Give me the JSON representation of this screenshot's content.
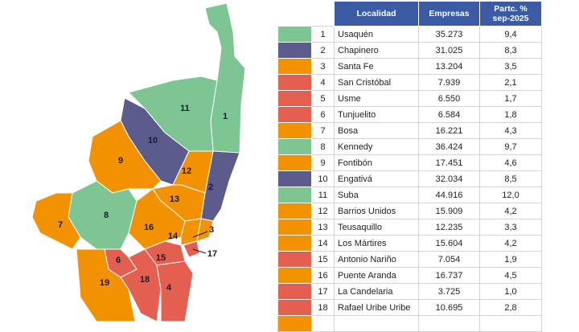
{
  "map": {
    "labels": [
      "1",
      "2",
      "3",
      "4",
      "6",
      "7",
      "8",
      "9",
      "10",
      "11",
      "12",
      "13",
      "14",
      "15",
      "16",
      "17",
      "18",
      "19"
    ]
  },
  "table": {
    "header": [
      "Localidad",
      "Empresas",
      "Partc. %\nsep-2025"
    ],
    "row_colors": [
      "#7dc592",
      "#5b5b8c",
      "#f39200",
      "#e35f4f",
      "#e35f4f",
      "#e35f4f",
      "#f39200",
      "#7dc592",
      "#f39200",
      "#5b5b8c",
      "#7dc592",
      "#f39200",
      "#f39200",
      "#f39200",
      "#e35f4f",
      "#f39200",
      "#e35f4f",
      "#e35f4f"
    ],
    "rows": [
      [
        "1",
        "Usaquén",
        "35.273",
        "9,4"
      ],
      [
        "2",
        "Chapinero",
        "31.025",
        "8,3"
      ],
      [
        "3",
        "Santa Fe",
        "13.204",
        "3,5"
      ],
      [
        "4",
        "San Cristóbal",
        "7.939",
        "2,1"
      ],
      [
        "5",
        "Usme",
        "6.550",
        "1,7"
      ],
      [
        "6",
        "Tunjuelito",
        "6.584",
        "1,8"
      ],
      [
        "7",
        "Bosa",
        "16.221",
        "4,3"
      ],
      [
        "8",
        "Kennedy",
        "36.424",
        "9,7"
      ],
      [
        "9",
        "Fontibón",
        "17.451",
        "4,6"
      ],
      [
        "10",
        "Engativá",
        "32.034",
        "8,5"
      ],
      [
        "11",
        "Suba",
        "44.916",
        "12,0"
      ],
      [
        "12",
        "Barrios Unidos",
        "15.909",
        "4,2"
      ],
      [
        "13",
        "Teusaquillo",
        "12.235",
        "3,3"
      ],
      [
        "14",
        "Los Mártires",
        "15.604",
        "4,2"
      ],
      [
        "15",
        "Antonio Nariño",
        "7.054",
        "1,9"
      ],
      [
        "16",
        "Puente Aranda",
        "16.737",
        "4,5"
      ],
      [
        "17",
        "La Candelaria",
        "3.725",
        "1,0"
      ],
      [
        "18",
        "Rafael Uribe Uribe",
        "10.695",
        "2,8"
      ]
    ]
  }
}
